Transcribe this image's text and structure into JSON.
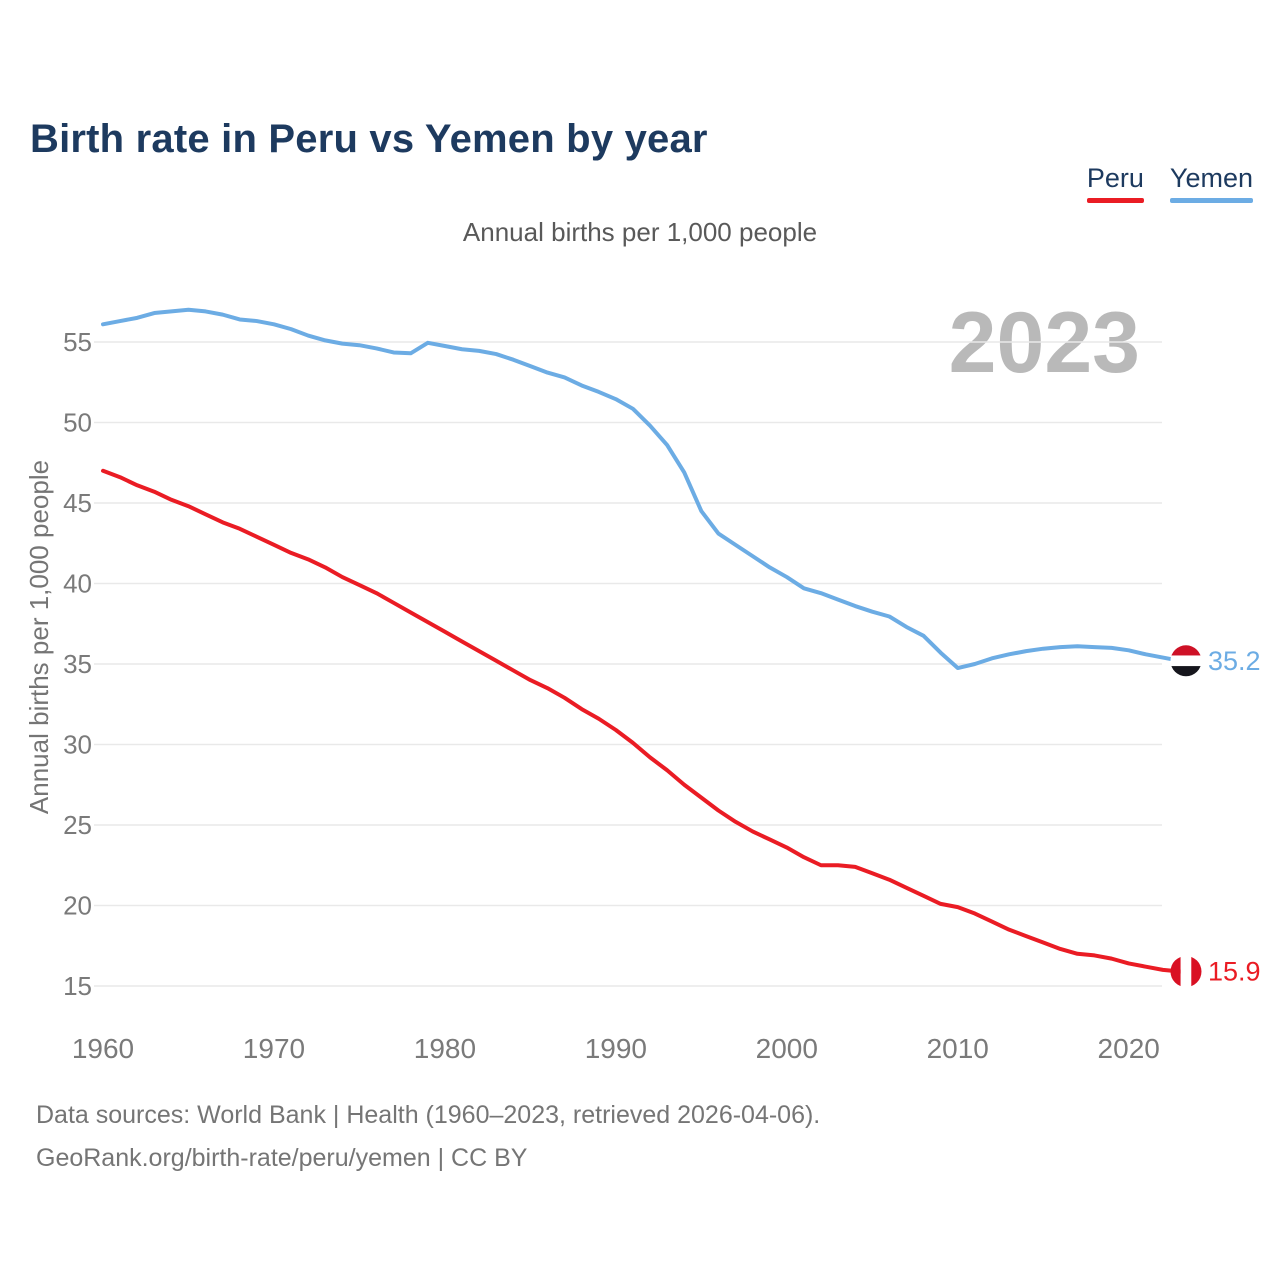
{
  "header": {
    "title": "Birth rate in Peru vs Yemen by year"
  },
  "legend": {
    "items": [
      {
        "label": "Peru",
        "color": "#ea1c24"
      },
      {
        "label": "Yemen",
        "color": "#6cace4"
      }
    ]
  },
  "subtitle": "Annual births per 1,000 people",
  "watermark": "2023",
  "footer": {
    "line1": "Data sources: World Bank | Health (1960–2023, retrieved 2026-04-06).",
    "line2": "GeoRank.org/birth-rate/peru/yemen | CC BY"
  },
  "chart_data": {
    "type": "line",
    "title": "Birth rate in Peru vs Yemen by year",
    "subtitle": "Annual births per 1,000 people",
    "xlabel": "",
    "ylabel": "Annual births per 1,000 people",
    "grid": true,
    "legend_position": "top-right",
    "xlim": [
      1960,
      2023
    ],
    "ylim": [
      15,
      57
    ],
    "xticks": [
      1960,
      1970,
      1980,
      1990,
      2000,
      2010,
      2020
    ],
    "yticks": [
      15,
      20,
      25,
      30,
      35,
      40,
      45,
      50,
      55
    ],
    "x": [
      1960,
      1961,
      1962,
      1963,
      1964,
      1965,
      1966,
      1967,
      1968,
      1969,
      1970,
      1971,
      1972,
      1973,
      1974,
      1975,
      1976,
      1977,
      1978,
      1979,
      1980,
      1981,
      1982,
      1983,
      1984,
      1985,
      1986,
      1987,
      1988,
      1989,
      1990,
      1991,
      1992,
      1993,
      1994,
      1995,
      1996,
      1997,
      1998,
      1999,
      2000,
      2001,
      2002,
      2003,
      2004,
      2005,
      2006,
      2007,
      2008,
      2009,
      2010,
      2011,
      2012,
      2013,
      2014,
      2015,
      2016,
      2017,
      2018,
      2019,
      2020,
      2021,
      2022,
      2023
    ],
    "series": [
      {
        "name": "Peru",
        "color": "#ea1c24",
        "end_label": "15.9",
        "flag": "peru-flag",
        "values": [
          47.0,
          46.6,
          46.1,
          45.7,
          45.2,
          44.8,
          44.3,
          43.8,
          43.4,
          42.9,
          42.4,
          41.9,
          41.5,
          41.0,
          40.4,
          39.9,
          39.4,
          38.8,
          38.2,
          37.6,
          37.0,
          36.4,
          35.8,
          35.2,
          34.6,
          34.0,
          33.5,
          32.9,
          32.2,
          31.6,
          30.9,
          30.1,
          29.2,
          28.4,
          27.5,
          26.7,
          25.9,
          25.2,
          24.6,
          24.1,
          23.6,
          23.0,
          22.5,
          22.5,
          22.4,
          22.0,
          21.6,
          21.1,
          20.6,
          20.1,
          19.9,
          19.5,
          19.0,
          18.5,
          18.1,
          17.7,
          17.3,
          17.0,
          16.9,
          16.7,
          16.4,
          16.2,
          16.0,
          15.9
        ]
      },
      {
        "name": "Yemen",
        "color": "#6cace4",
        "end_label": "35.2",
        "flag": "yemen-flag",
        "values": [
          56.1,
          56.3,
          56.5,
          56.8,
          56.9,
          57.0,
          56.9,
          56.7,
          56.4,
          56.3,
          56.1,
          55.8,
          55.4,
          55.1,
          54.9,
          54.8,
          54.6,
          54.35,
          54.3,
          54.95,
          54.75,
          54.55,
          54.45,
          54.25,
          53.9,
          53.5,
          53.1,
          52.8,
          52.3,
          51.9,
          51.45,
          50.85,
          49.8,
          48.6,
          46.9,
          44.5,
          43.1,
          42.4,
          41.7,
          41.0,
          40.4,
          39.7,
          39.4,
          39.0,
          38.6,
          38.25,
          37.95,
          37.3,
          36.75,
          35.7,
          34.75,
          35.0,
          35.35,
          35.6,
          35.8,
          35.95,
          36.05,
          36.1,
          36.05,
          36.0,
          35.85,
          35.6,
          35.4,
          35.2
        ]
      }
    ]
  }
}
